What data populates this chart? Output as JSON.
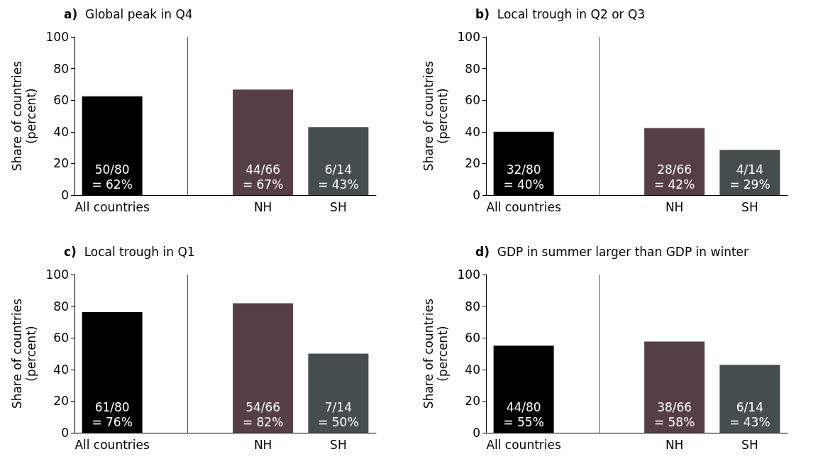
{
  "chart_data": [
    {
      "type": "bar",
      "title": "a) Global peak in Q4",
      "ylabel": "Share of countries\n(percent)",
      "categories": [
        "All countries",
        null,
        "NH",
        "SH"
      ],
      "values": [
        62.5,
        null,
        66.7,
        42.9
      ],
      "colors": [
        "#000000",
        "#000000",
        "#563e47",
        "#464e4d"
      ],
      "value_labels": [
        "50/80\n= 62%",
        null,
        "44/66\n= 67%",
        "6/14\n= 43%"
      ],
      "ylim": [
        0,
        100
      ],
      "yticks": [
        0,
        20,
        40,
        60,
        80,
        100
      ],
      "ref_lines": [
        {
          "axis": "x",
          "value": null,
          "color": "#555555"
        }
      ]
    },
    {
      "type": "bar",
      "title": "b) Local trough in Q2 or Q3",
      "ylabel": "Share of countries\n(percent)",
      "categories": [
        "All countries",
        null,
        "NH",
        "SH"
      ],
      "values": [
        40,
        null,
        42.4,
        28.6
      ],
      "colors": [
        "#000000",
        "#000000",
        "#563e47",
        "#464e4d"
      ],
      "value_labels": [
        "32/80\n= 40%",
        null,
        "28/66\n= 42%",
        "4/14\n= 29%"
      ],
      "ylim": [
        0,
        100
      ],
      "yticks": [
        0,
        20,
        40,
        60,
        80,
        100
      ],
      "ref_lines": [
        {
          "axis": "x",
          "value": null,
          "color": "#555555"
        }
      ]
    },
    {
      "type": "bar",
      "title": "c) Local trough in Q1",
      "ylabel": "Share of countries\n(percent)",
      "categories": [
        "All countries",
        null,
        "NH",
        "SH"
      ],
      "values": [
        76.2,
        null,
        81.8,
        50
      ],
      "colors": [
        "#000000",
        "#000000",
        "#563e47",
        "#464e4d"
      ],
      "value_labels": [
        "61/80\n= 76%",
        null,
        "54/66\n= 82%",
        "7/14\n= 50%"
      ],
      "ylim": [
        0,
        100
      ],
      "yticks": [
        0,
        20,
        40,
        60,
        80,
        100
      ],
      "ref_lines": [
        {
          "axis": "x",
          "value": null,
          "color": "#555555"
        }
      ]
    },
    {
      "type": "bar",
      "title": "d) GDP in summer larger than GDP in winter",
      "ylabel": "Share of countries\n(percent)",
      "categories": [
        "All countries",
        null,
        "NH",
        "SH"
      ],
      "values": [
        55,
        null,
        57.6,
        42.9
      ],
      "colors": [
        "#000000",
        "#000000",
        "#563e47",
        "#464e4d"
      ],
      "value_labels": [
        "44/80\n= 55%",
        null,
        "38/66\n= 58%",
        "6/14\n= 43%"
      ],
      "ylim": [
        0,
        100
      ],
      "yticks": [
        0,
        20,
        40,
        60,
        80,
        100
      ],
      "ref_lines": [
        {
          "axis": "x",
          "value": null,
          "color": "#555555"
        }
      ]
    }
  ]
}
